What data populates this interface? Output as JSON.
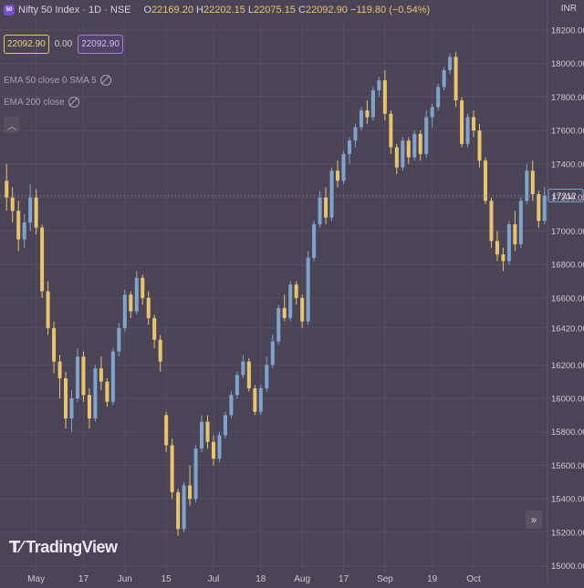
{
  "header": {
    "badge": "50",
    "title": "Nifty 50 Index · 1D · NSE",
    "ohlc": {
      "o_label": "O",
      "o": "22169.20",
      "h_label": "H",
      "h": "22202.15",
      "l_label": "L",
      "l": "22075.15",
      "c_label": "C",
      "c": "22092.90",
      "change": "−119.80 (−0.54%)"
    }
  },
  "price_boxes": {
    "sell": "22092.90",
    "spread": "0.00",
    "buy": "22092.90"
  },
  "indicators": {
    "ema50": "EMA 50 close 0 SMA 5",
    "ema200": "EMA 200 close"
  },
  "currency": "INR",
  "logo": {
    "text": "TradingView"
  },
  "colors": {
    "background": "#4b4456",
    "up": "#7fa4cc",
    "down": "#e9c46a",
    "grid": "#574f63",
    "axis_text": "#cfc8d6"
  },
  "chart_data": {
    "type": "candlestick",
    "y_ticks": [
      "18200.00",
      "18000.00",
      "17800.00",
      "17600.00",
      "17400.00",
      "17200.00",
      "17000.00",
      "16800.00",
      "16600.00",
      "16420.00",
      "16200.00",
      "16000.00",
      "15800.00",
      "15600.00",
      "15400.00",
      "15200.00",
      "15000.00"
    ],
    "y_tick_values": [
      18200,
      18000,
      17800,
      17600,
      17400,
      17200,
      17000,
      16800,
      16600,
      16420,
      16200,
      16000,
      15800,
      15600,
      15400,
      15200,
      15000
    ],
    "ylim": [
      14960,
      18260
    ],
    "x_ticks": [
      {
        "label": "May",
        "i": 5
      },
      {
        "label": "17",
        "i": 13
      },
      {
        "label": "Jun",
        "i": 20
      },
      {
        "label": "15",
        "i": 27
      },
      {
        "label": "Jul",
        "i": 35
      },
      {
        "label": "18",
        "i": 43
      },
      {
        "label": "Aug",
        "i": 50
      },
      {
        "label": "17",
        "i": 57
      },
      {
        "label": "Sep",
        "i": 64
      },
      {
        "label": "19",
        "i": 72
      },
      {
        "label": "Oct",
        "i": 79
      }
    ],
    "last_price_label": "17212",
    "last_price": 17212,
    "candles": [
      [
        17300,
        17400,
        17120,
        17200
      ],
      [
        17200,
        17260,
        17050,
        17120
      ],
      [
        17120,
        17180,
        16880,
        16950
      ],
      [
        16950,
        17100,
        16900,
        17050
      ],
      [
        17050,
        17280,
        17000,
        17200
      ],
      [
        17200,
        17250,
        16980,
        17020
      ],
      [
        17020,
        17040,
        16600,
        16640
      ],
      [
        16640,
        16700,
        16380,
        16420
      ],
      [
        16420,
        16460,
        16150,
        16220
      ],
      [
        16220,
        16260,
        16000,
        16120
      ],
      [
        16120,
        16160,
        15820,
        15880
      ],
      [
        15880,
        16050,
        15800,
        16000
      ],
      [
        16000,
        16300,
        15980,
        16250
      ],
      [
        16250,
        16280,
        15980,
        16020
      ],
      [
        16020,
        16060,
        15820,
        15880
      ],
      [
        15880,
        16200,
        15860,
        16180
      ],
      [
        16180,
        16250,
        16050,
        16100
      ],
      [
        16100,
        16120,
        15950,
        15980
      ],
      [
        15980,
        16300,
        15960,
        16280
      ],
      [
        16280,
        16450,
        16250,
        16420
      ],
      [
        16420,
        16650,
        16400,
        16620
      ],
      [
        16620,
        16640,
        16480,
        16520
      ],
      [
        16520,
        16760,
        16500,
        16720
      ],
      [
        16720,
        16740,
        16560,
        16600
      ],
      [
        16600,
        16640,
        16440,
        16480
      ],
      [
        16480,
        16500,
        16300,
        16350
      ],
      [
        16350,
        16380,
        16160,
        16220
      ],
      [
        15900,
        15920,
        15680,
        15720
      ],
      [
        15720,
        15760,
        15400,
        15440
      ],
      [
        15440,
        15460,
        15180,
        15220
      ],
      [
        15220,
        15500,
        15200,
        15480
      ],
      [
        15480,
        15600,
        15360,
        15400
      ],
      [
        15400,
        15720,
        15380,
        15700
      ],
      [
        15700,
        15900,
        15680,
        15860
      ],
      [
        15860,
        15900,
        15700,
        15740
      ],
      [
        15740,
        15780,
        15600,
        15640
      ],
      [
        15640,
        15800,
        15620,
        15780
      ],
      [
        15780,
        15920,
        15760,
        15900
      ],
      [
        15900,
        16040,
        15880,
        16020
      ],
      [
        16020,
        16160,
        16000,
        16140
      ],
      [
        16140,
        16260,
        16120,
        16220
      ],
      [
        16220,
        16240,
        16040,
        16060
      ],
      [
        16060,
        16080,
        15900,
        15920
      ],
      [
        15920,
        16080,
        15900,
        16060
      ],
      [
        16060,
        16250,
        16040,
        16200
      ],
      [
        16200,
        16380,
        16180,
        16340
      ],
      [
        16340,
        16560,
        16320,
        16540
      ],
      [
        16540,
        16620,
        16460,
        16480
      ],
      [
        16480,
        16700,
        16460,
        16680
      ],
      [
        16680,
        16700,
        16560,
        16600
      ],
      [
        16600,
        16620,
        16420,
        16460
      ],
      [
        16460,
        16880,
        16440,
        16840
      ],
      [
        16840,
        17060,
        16820,
        17040
      ],
      [
        17040,
        17240,
        17020,
        17200
      ],
      [
        17200,
        17260,
        17040,
        17080
      ],
      [
        17080,
        17380,
        17060,
        17360
      ],
      [
        17360,
        17420,
        17260,
        17300
      ],
      [
        17300,
        17480,
        17280,
        17460
      ],
      [
        17460,
        17560,
        17400,
        17540
      ],
      [
        17540,
        17640,
        17500,
        17620
      ],
      [
        17620,
        17740,
        17600,
        17720
      ],
      [
        17720,
        17780,
        17640,
        17680
      ],
      [
        17680,
        17860,
        17660,
        17840
      ],
      [
        17840,
        17920,
        17800,
        17900
      ],
      [
        17900,
        17960,
        17660,
        17700
      ],
      [
        17700,
        17720,
        17460,
        17500
      ],
      [
        17500,
        17520,
        17340,
        17380
      ],
      [
        17380,
        17560,
        17360,
        17540
      ],
      [
        17540,
        17560,
        17400,
        17440
      ],
      [
        17440,
        17600,
        17420,
        17580
      ],
      [
        17580,
        17600,
        17420,
        17460
      ],
      [
        17460,
        17720,
        17440,
        17680
      ],
      [
        17680,
        17760,
        17620,
        17740
      ],
      [
        17740,
        17880,
        17720,
        17860
      ],
      [
        17860,
        17980,
        17840,
        17960
      ],
      [
        17960,
        18060,
        17940,
        18040
      ],
      [
        18040,
        18070,
        17740,
        17780
      ],
      [
        17780,
        17800,
        17500,
        17520
      ],
      [
        17520,
        17700,
        17500,
        17680
      ],
      [
        17680,
        17720,
        17560,
        17600
      ],
      [
        17600,
        17640,
        17380,
        17420
      ],
      [
        17420,
        17440,
        17160,
        17180
      ],
      [
        17180,
        17200,
        16900,
        16940
      ],
      [
        16940,
        17000,
        16820,
        16860
      ],
      [
        16860,
        16900,
        16760,
        16820
      ],
      [
        16820,
        17060,
        16800,
        17040
      ],
      [
        17040,
        17120,
        16880,
        16920
      ],
      [
        16920,
        17200,
        16900,
        17180
      ],
      [
        17180,
        17400,
        17160,
        17360
      ],
      [
        17360,
        17420,
        17180,
        17220
      ],
      [
        17220,
        17240,
        17020,
        17060
      ],
      [
        17060,
        17260,
        17040,
        17212
      ]
    ]
  }
}
